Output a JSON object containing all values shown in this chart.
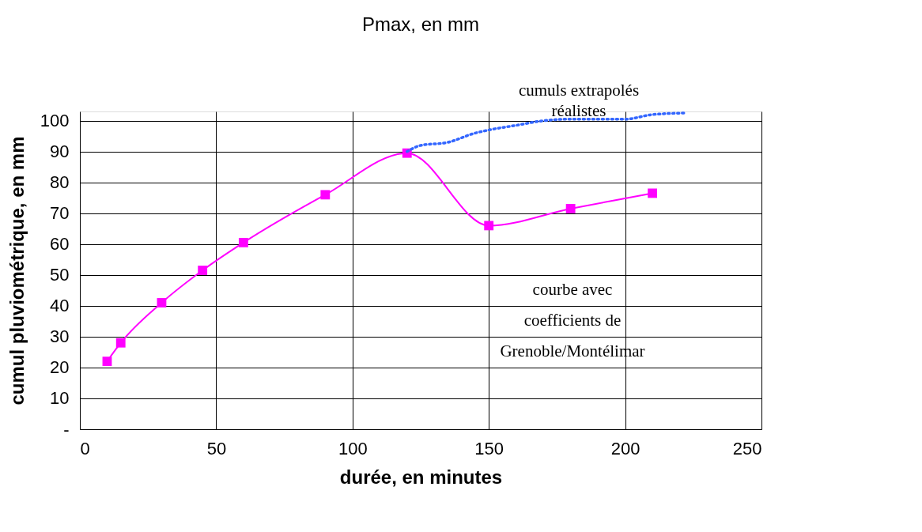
{
  "chart_data": {
    "type": "line",
    "title": "Pmax, en mm",
    "xlabel": "durée, en minutes",
    "ylabel": "cumul pluviométrique, en mm",
    "xlim": [
      0,
      250
    ],
    "xticks": [
      0,
      50,
      100,
      150,
      200,
      250
    ],
    "ylim": [
      0,
      103
    ],
    "yticks": [
      {
        "value": 0,
        "label": "-"
      },
      10,
      20,
      30,
      40,
      50,
      60,
      70,
      80,
      90,
      100
    ],
    "grid": true,
    "series": [
      {
        "color": "#ff00ff",
        "marker": "square",
        "line_style": "solid",
        "x": [
          10,
          15,
          30,
          45,
          60,
          90,
          120,
          150,
          180,
          210
        ],
        "values": [
          22,
          28,
          41,
          51.5,
          60.5,
          76,
          89.5,
          66,
          71.5,
          76.5
        ]
      },
      {
        "color": "#3366ff",
        "marker": "none",
        "line_style": "dotted",
        "x": [
          120,
          125,
          135,
          145,
          150,
          160,
          170,
          180,
          200,
          210,
          222
        ],
        "values": [
          90,
          92,
          93,
          96,
          97,
          98.5,
          100,
          100.5,
          100.5,
          102,
          102.5
        ]
      }
    ],
    "annotations": [
      "cumuls extrapolés\nréalistes",
      "courbe avec\ncoefficients de\nGrenoble/Montélimar"
    ]
  }
}
